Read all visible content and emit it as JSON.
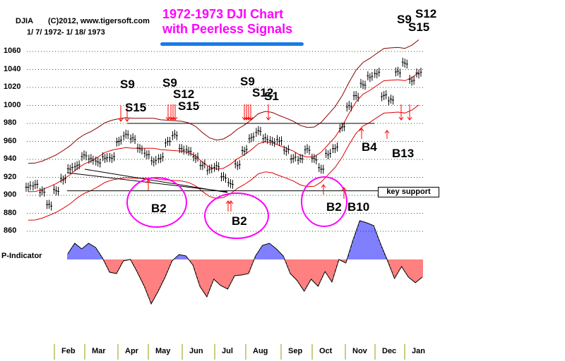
{
  "header": {
    "symbol": "DJIA",
    "copyright": "(C)2012, www.tigersoft.com",
    "date_range": "1/ 7/ 1972- 1/ 18/ 1973"
  },
  "title": {
    "line1": "1972-1973 DJI Chart",
    "line2": "with Peerless Signals"
  },
  "indicator_label": "P-Indicator",
  "key_support_label": "key support",
  "signals": {
    "s9a": "S9",
    "s15a": "S15",
    "s9b": "S9",
    "s12b": "S12",
    "s15b": "S15",
    "s9c": "S9",
    "s12c": "S12",
    "s1c": "S1",
    "s9d": "S9",
    "s12d": "S12",
    "s15d": "S15",
    "b2a": "B2",
    "b2b": "B2",
    "b2c": "B2",
    "b10": "B10",
    "b4": "B4",
    "b13": "B13"
  },
  "colors": {
    "title": "#ff00ff",
    "underline": "#1a7ae8",
    "bands": "#e00000",
    "upper_band": "#8b0000",
    "positive": "#0000ff",
    "negative": "#ff0000",
    "grid": "#008000"
  },
  "chart_data": {
    "type": "bar",
    "title": "1972-1973 DJI Chart",
    "ylabel": "DJIA",
    "ylim": [
      860,
      1060
    ],
    "yticks": [
      1060,
      1040,
      1020,
      1000,
      980,
      960,
      940,
      920,
      900,
      880,
      860
    ],
    "months": [
      "Feb",
      "Mar",
      "Apr",
      "May",
      "Jun",
      "Jul",
      "Aug",
      "Sep",
      "Oct",
      "Nov",
      "Dec",
      "Jan"
    ],
    "grid": true,
    "weekly_close": [
      909,
      912,
      905,
      890,
      905,
      917,
      929,
      933,
      945,
      941,
      937,
      941,
      941,
      960,
      968,
      964,
      952,
      945,
      937,
      941,
      960,
      968,
      952,
      949,
      941,
      933,
      929,
      933,
      921,
      913,
      933,
      949,
      964,
      972,
      964,
      960,
      960,
      949,
      941,
      941,
      952,
      941,
      929,
      945,
      952,
      976,
      1000,
      1011,
      1023,
      1031,
      1035,
      1011,
      1007,
      1038,
      1047,
      1027,
      1035
    ],
    "resistance": 980,
    "key_support": 905,
    "p_indicator": [
      8,
      23,
      15,
      23,
      17,
      2,
      -18,
      -20,
      -2,
      0,
      -18,
      -38,
      -63,
      -45,
      -25,
      -2,
      7,
      5,
      -8,
      -38,
      -53,
      -28,
      -37,
      -42,
      -23,
      -22,
      -20,
      5,
      20,
      23,
      15,
      5,
      -20,
      -30,
      -45,
      -28,
      -38,
      -17,
      -32,
      0,
      -5,
      27,
      55,
      52,
      48,
      22,
      -2,
      -27,
      -10,
      -25,
      -33,
      -25
    ]
  }
}
